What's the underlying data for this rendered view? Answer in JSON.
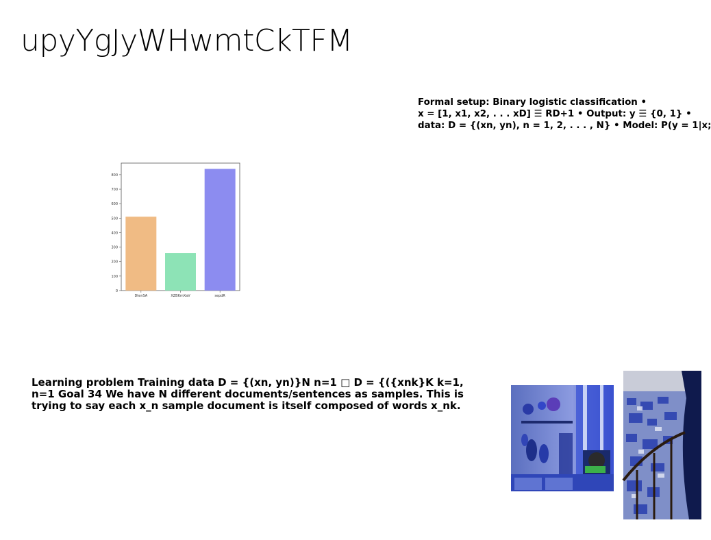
{
  "slide": {
    "title": "upyYgJyWHwmtCkTFM",
    "formal_setup_lines": [
      "Formal setup: Binary logistic classification •",
      "x = [1, x1, x2, . . . xD] ☰ RD+1 • Output: y ☰ {0, 1} •",
      "data: D = {(xn, yn), n = 1, 2, . . . , N} • Model: P(y = 1|x;"
    ],
    "learning_lines": [
      "Learning problem Training data D = {(xn, yn)}N n=1 □ D = {({xnk}K k=1,",
      "n=1 Goal 34 We have N different documents/sentences as samples. This is",
      "trying to say each x_n sample document is itself composed of words x_nk."
    ]
  },
  "chart_data": {
    "type": "bar",
    "categories": [
      "DtenSA",
      "XZBKmXaV",
      "sepdR"
    ],
    "values": [
      510,
      260,
      840
    ],
    "colors": [
      "#f0bb84",
      "#8de3b6",
      "#8c8cf0"
    ],
    "yticks": [
      0,
      100,
      200,
      300,
      400,
      500,
      600,
      700,
      800
    ],
    "ylim": [
      0,
      880
    ],
    "grid": false,
    "title": "",
    "xlabel": "",
    "ylabel": ""
  },
  "images": {
    "photo1": "blue-kitchen-shelf-photo",
    "photo2": "blue-city-rooftops-photo"
  }
}
